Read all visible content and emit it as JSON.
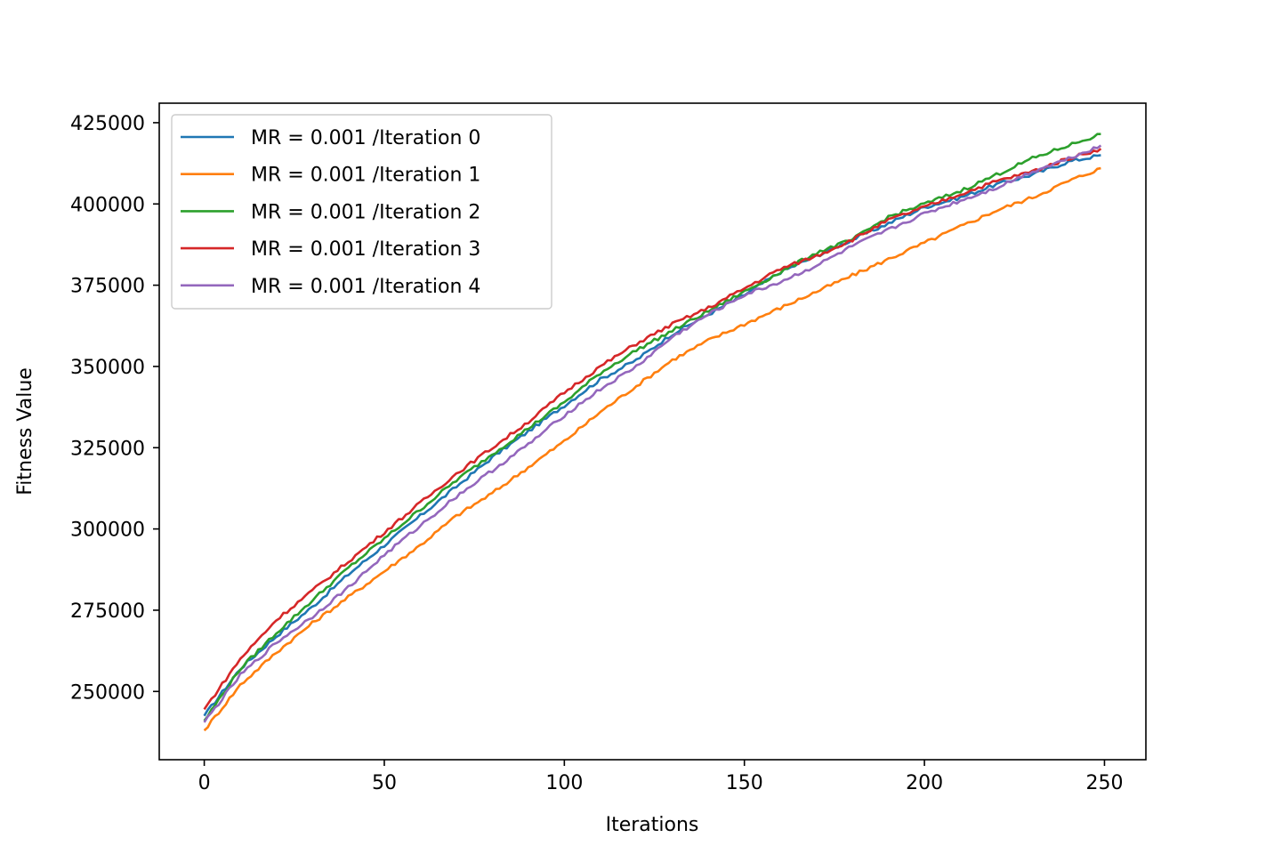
{
  "chart_data": {
    "type": "line",
    "title": "",
    "xlabel": "Iterations",
    "ylabel": "Fitness Value",
    "xlim": [
      -12.5,
      261.5
    ],
    "ylim": [
      229000,
      431000
    ],
    "xticks": [
      0,
      50,
      100,
      150,
      200,
      250
    ],
    "xtick_labels": [
      "0",
      "50",
      "100",
      "150",
      "200",
      "250"
    ],
    "yticks": [
      250000,
      275000,
      300000,
      325000,
      350000,
      375000,
      400000,
      425000
    ],
    "ytick_labels": [
      "250000",
      "275000",
      "300000",
      "325000",
      "350000",
      "375000",
      "400000",
      "425000"
    ],
    "grid": false,
    "legend_position": "upper-left",
    "x": [
      0,
      10,
      20,
      30,
      40,
      50,
      60,
      70,
      80,
      90,
      100,
      110,
      120,
      130,
      140,
      150,
      160,
      170,
      180,
      190,
      200,
      210,
      220,
      230,
      240,
      249
    ],
    "series": [
      {
        "name": "MR = 0.001 /Iteration 0",
        "color": "#1f77b4",
        "values": [
          242500,
          257000,
          267000,
          276000,
          286000,
          295000,
          304000,
          313000,
          322000,
          330000,
          338000,
          346000,
          352000,
          360000,
          366000,
          372000,
          379000,
          384000,
          389000,
          394000,
          399000,
          402000,
          406000,
          409000,
          413000,
          415000
        ]
      },
      {
        "name": "MR = 0.001 /Iteration 1",
        "color": "#ff7f0e",
        "values": [
          238000,
          252000,
          262000,
          271000,
          279000,
          287000,
          295000,
          304000,
          311000,
          319000,
          327000,
          336000,
          344000,
          352000,
          358000,
          363000,
          368000,
          373000,
          378000,
          383000,
          388000,
          393000,
          398000,
          402000,
          407000,
          411000
        ]
      },
      {
        "name": "MR = 0.001 /Iteration 2",
        "color": "#2ca02c",
        "values": [
          241000,
          257000,
          268000,
          278000,
          288000,
          297000,
          306000,
          315000,
          323000,
          331000,
          339000,
          348000,
          355000,
          361000,
          367000,
          373000,
          379000,
          385000,
          389000,
          396000,
          400000,
          404000,
          409000,
          414000,
          418000,
          421500
        ]
      },
      {
        "name": "MR = 0.001 /Iteration 3",
        "color": "#d62728",
        "values": [
          244500,
          260000,
          272000,
          281000,
          290000,
          299000,
          308000,
          317000,
          325000,
          333000,
          342000,
          350000,
          357000,
          363000,
          368000,
          374000,
          380000,
          384000,
          389000,
          395000,
          399000,
          403000,
          407000,
          410000,
          414000,
          417000
        ]
      },
      {
        "name": "MR = 0.001 /Iteration 4",
        "color": "#9467bd",
        "values": [
          240500,
          255000,
          265000,
          273000,
          282000,
          292000,
          301000,
          310000,
          318000,
          326000,
          335000,
          343000,
          350000,
          359000,
          366000,
          372000,
          376000,
          381000,
          387000,
          392000,
          397000,
          401000,
          405000,
          410000,
          414000,
          418000
        ]
      }
    ]
  }
}
